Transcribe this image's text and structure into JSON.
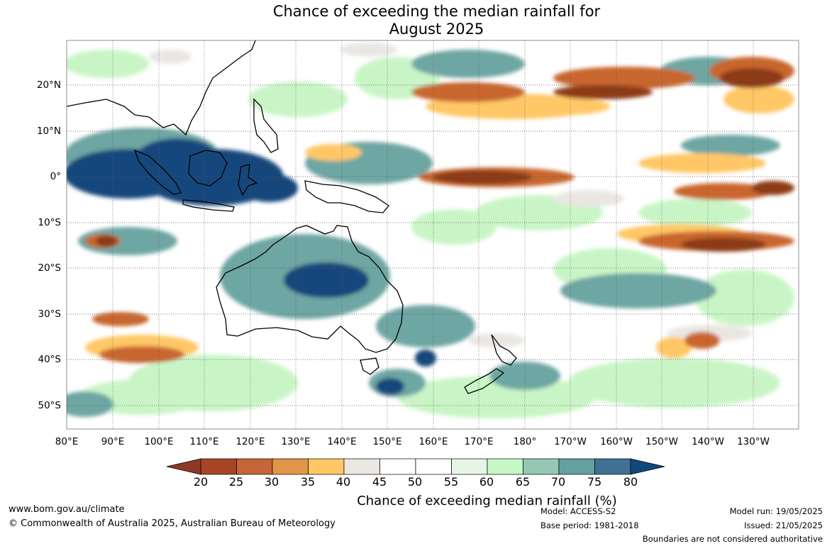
{
  "title": {
    "line1": "Chance of exceeding the median rainfall for",
    "line2": "August 2025"
  },
  "map": {
    "latitude_labels": [
      "20°N",
      "10°N",
      "0°",
      "10°S",
      "20°S",
      "30°S",
      "40°S",
      "50°S"
    ],
    "longitude_labels": [
      "80°E",
      "90°E",
      "100°E",
      "110°E",
      "120°E",
      "130°E",
      "140°E",
      "150°E",
      "160°E",
      "170°E",
      "180°",
      "170°W",
      "160°W",
      "150°W",
      "140°W",
      "130°W"
    ],
    "colors": {
      "ocean_land_base": "#ffffff",
      "dry_strong": "#8c3a14",
      "dry_mid": "#c8662f",
      "dry_light": "#ffc766",
      "neutral": "#eae7e3",
      "wet_light": "#c9f5c6",
      "wet_mid": "#6ea6a3",
      "wet_strong": "#12477c"
    }
  },
  "colorbar": {
    "ticks": [
      "20",
      "25",
      "30",
      "35",
      "40",
      "45",
      "50",
      "55",
      "60",
      "65",
      "70",
      "75",
      "80"
    ],
    "colors": [
      "#a84424",
      "#c66538",
      "#e09548",
      "#ffc766",
      "#ebe8e3",
      "#ffffff",
      "#ffffff",
      "#e6f5e6",
      "#c6f7c4",
      "#95c8b3",
      "#65a0a0",
      "#3e7194",
      "#12477c"
    ],
    "under_color": "#8c3a24",
    "over_color": "#12477c",
    "label": "Chance of exceeding median rainfall (%)"
  },
  "footer": {
    "website": "www.bom.gov.au/climate",
    "copyright": "© Commonwealth of Australia 2025, Australian Bureau of Meteorology",
    "model": "Model: ACCESS-S2",
    "base_period": "Base period: 1981-2018",
    "model_run": "Model run: 19/05/2025",
    "issued": "Issued: 21/05/2025",
    "disclaimer": "Boundaries are not considered authoritative"
  }
}
